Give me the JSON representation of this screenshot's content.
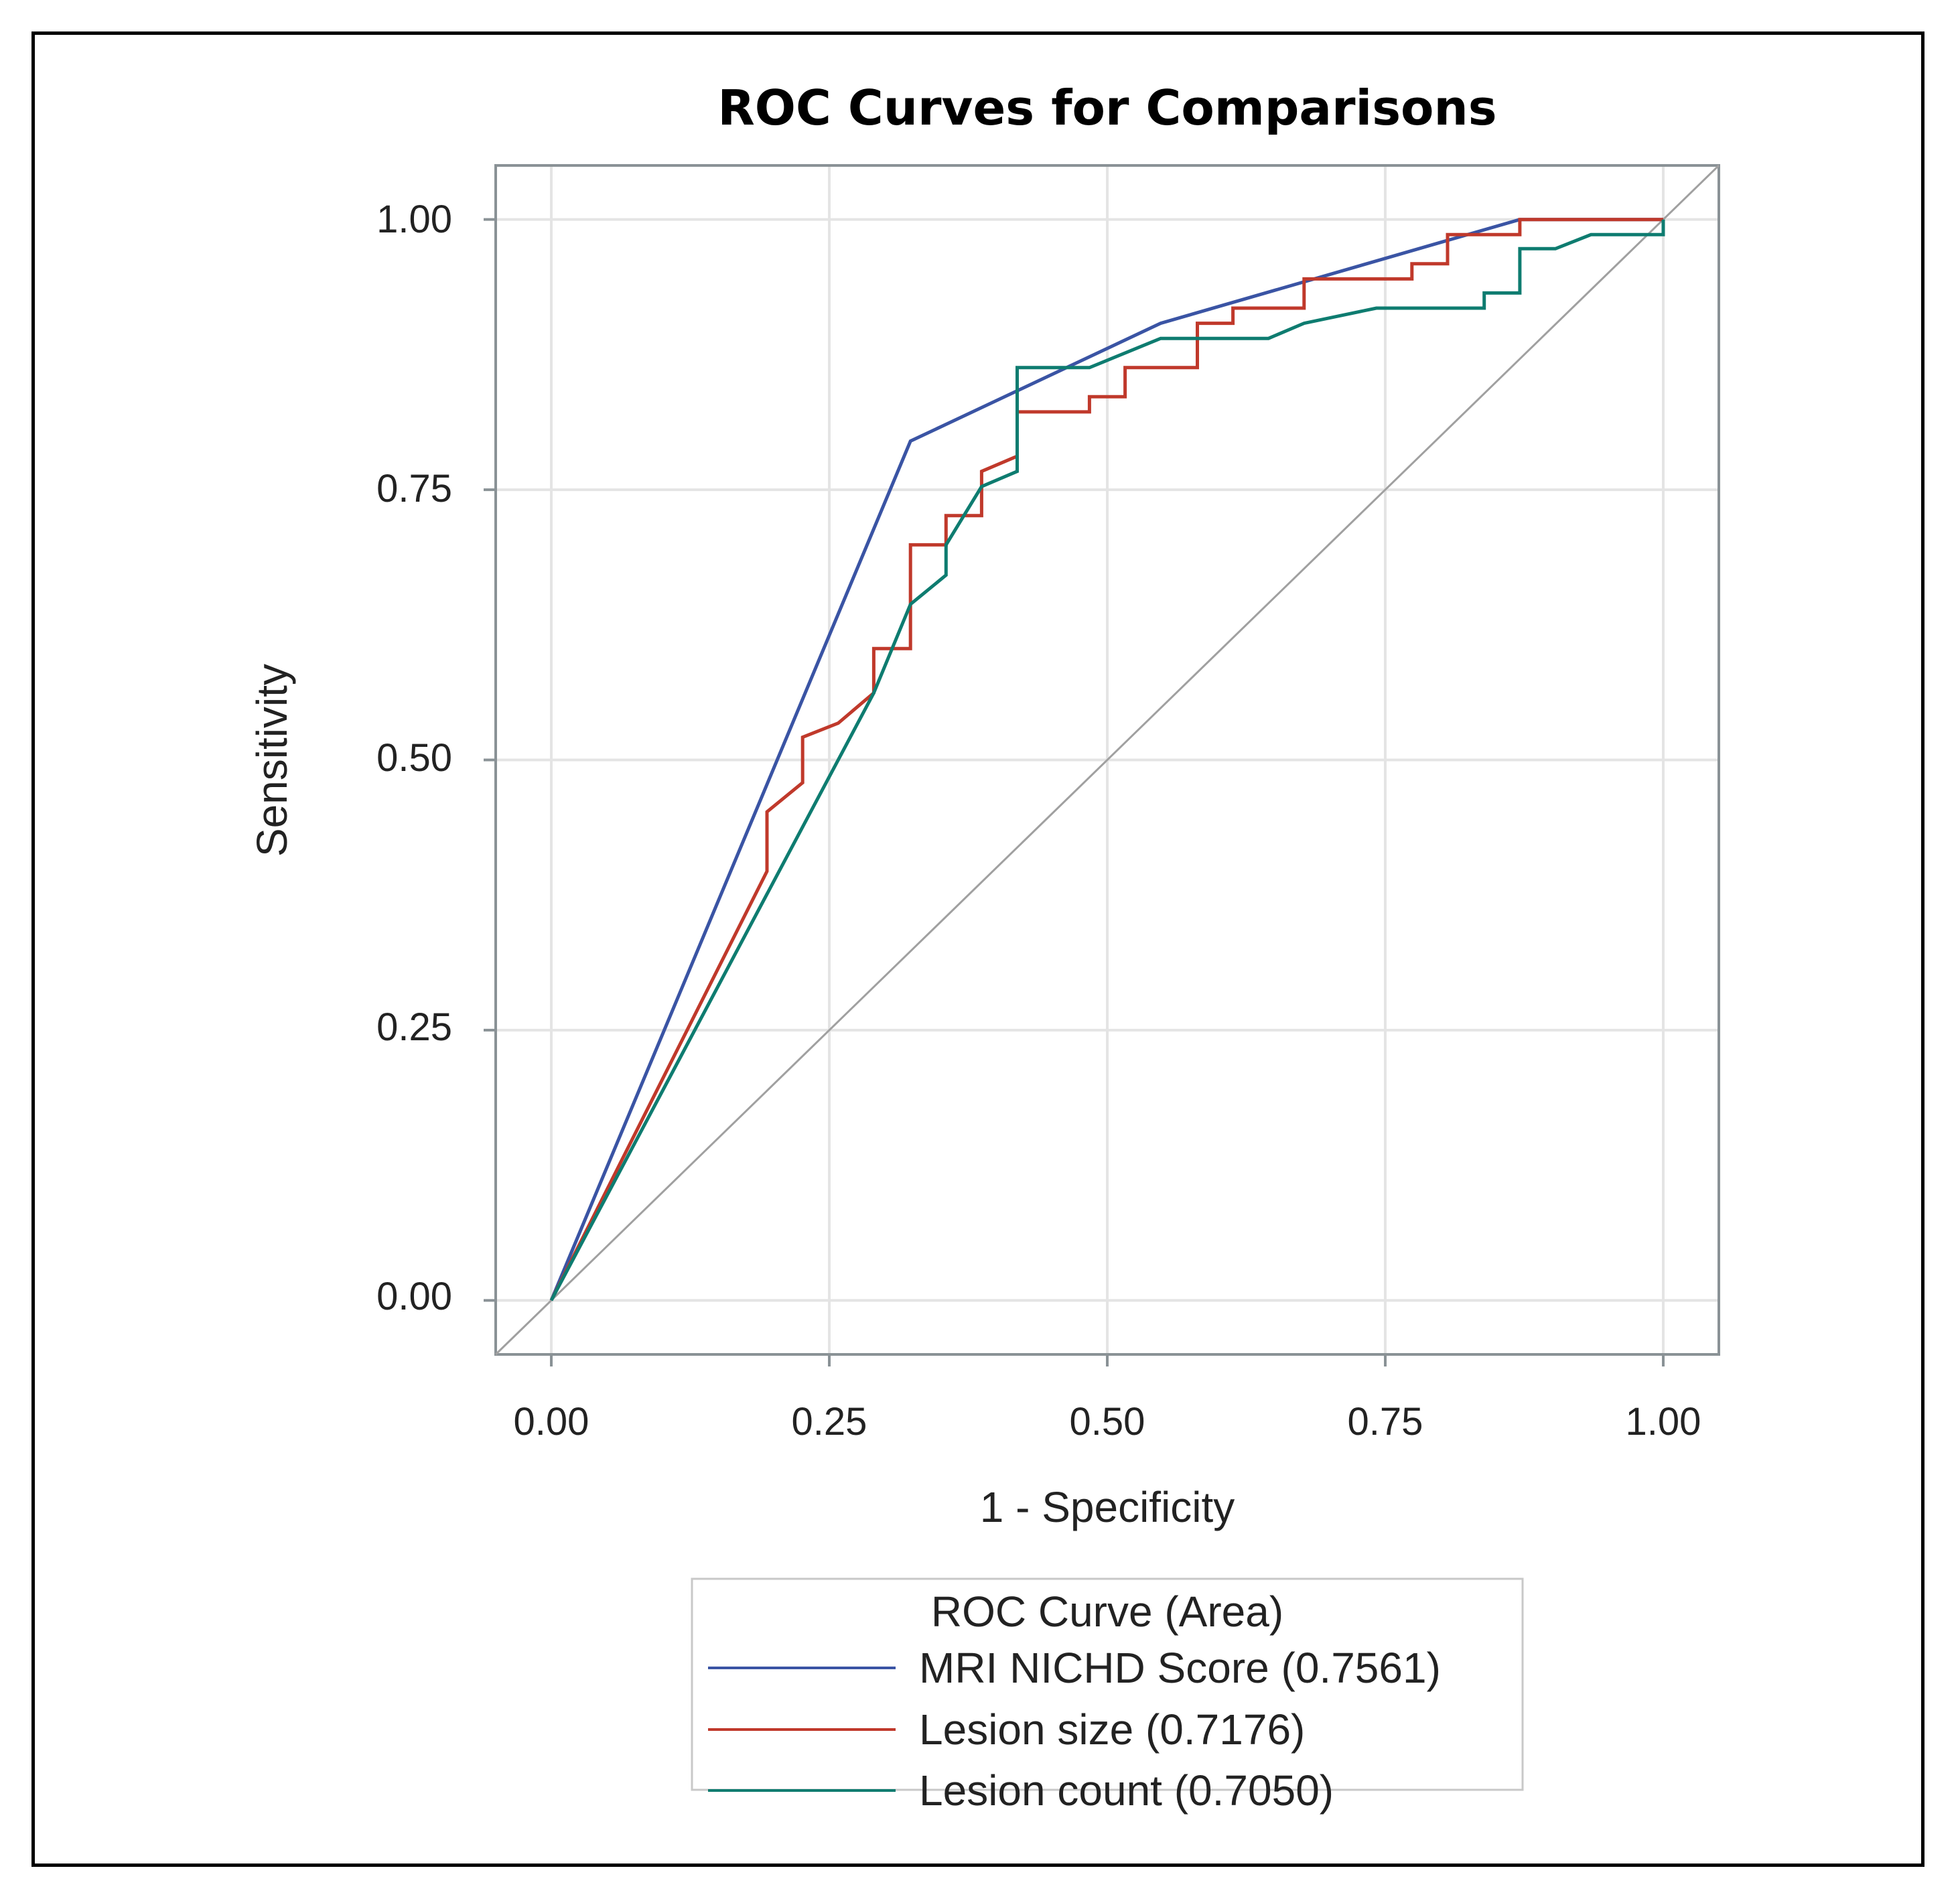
{
  "chart_data": {
    "type": "line",
    "title": "ROC Curves for Comparisons",
    "xlabel": "1 - Specificity",
    "ylabel": "Sensitivity",
    "xlim": [
      -0.05,
      1.05
    ],
    "ylim": [
      -0.05,
      1.05
    ],
    "xticks": [
      "0.00",
      "0.25",
      "0.50",
      "0.75",
      "1.00"
    ],
    "yticks": [
      "0.00",
      "0.25",
      "0.50",
      "0.75",
      "1.00"
    ],
    "grid": true,
    "legend": {
      "title": "ROC Curve (Area)",
      "placement": "bottom",
      "entries": [
        "MRI NICHD Score  (0.7561)",
        "Lesion size  (0.7176)",
        "Lesion count  (0.7050)"
      ]
    },
    "reference_line": {
      "x": [
        0,
        1
      ],
      "y": [
        0,
        1
      ],
      "color": "#a0a0a0"
    },
    "series": [
      {
        "name": "MRI NICHD Score",
        "color": "#3a54a4",
        "x": [
          0,
          0.323,
          0.548,
          0.871,
          1.0
        ],
        "y": [
          0,
          0.795,
          0.904,
          1.0,
          1.0
        ]
      },
      {
        "name": "Lesion size",
        "color": "#c0392b",
        "x": [
          0,
          0.194,
          0.194,
          0.226,
          0.226,
          0.258,
          0.29,
          0.29,
          0.323,
          0.323,
          0.355,
          0.355,
          0.387,
          0.387,
          0.419,
          0.419,
          0.484,
          0.484,
          0.516,
          0.516,
          0.581,
          0.581,
          0.613,
          0.613,
          0.677,
          0.677,
          0.774,
          0.774,
          0.806,
          0.806,
          0.871,
          0.871,
          1.0
        ],
        "y": [
          0,
          0.397,
          0.452,
          0.479,
          0.521,
          0.534,
          0.562,
          0.603,
          0.603,
          0.699,
          0.699,
          0.726,
          0.726,
          0.767,
          0.781,
          0.822,
          0.822,
          0.836,
          0.836,
          0.863,
          0.863,
          0.904,
          0.904,
          0.918,
          0.918,
          0.945,
          0.945,
          0.959,
          0.959,
          0.986,
          0.986,
          1.0,
          1.0
        ]
      },
      {
        "name": "Lesion count",
        "color": "#0e7c70",
        "x": [
          0,
          0.29,
          0.323,
          0.355,
          0.355,
          0.387,
          0.419,
          0.419,
          0.484,
          0.548,
          0.645,
          0.677,
          0.742,
          0.839,
          0.839,
          0.871,
          0.871,
          0.903,
          0.935,
          1.0,
          1.0
        ],
        "y": [
          0,
          0.562,
          0.644,
          0.671,
          0.699,
          0.753,
          0.767,
          0.863,
          0.863,
          0.89,
          0.89,
          0.904,
          0.918,
          0.918,
          0.932,
          0.932,
          0.973,
          0.973,
          0.986,
          0.986,
          1.0
        ]
      }
    ]
  }
}
